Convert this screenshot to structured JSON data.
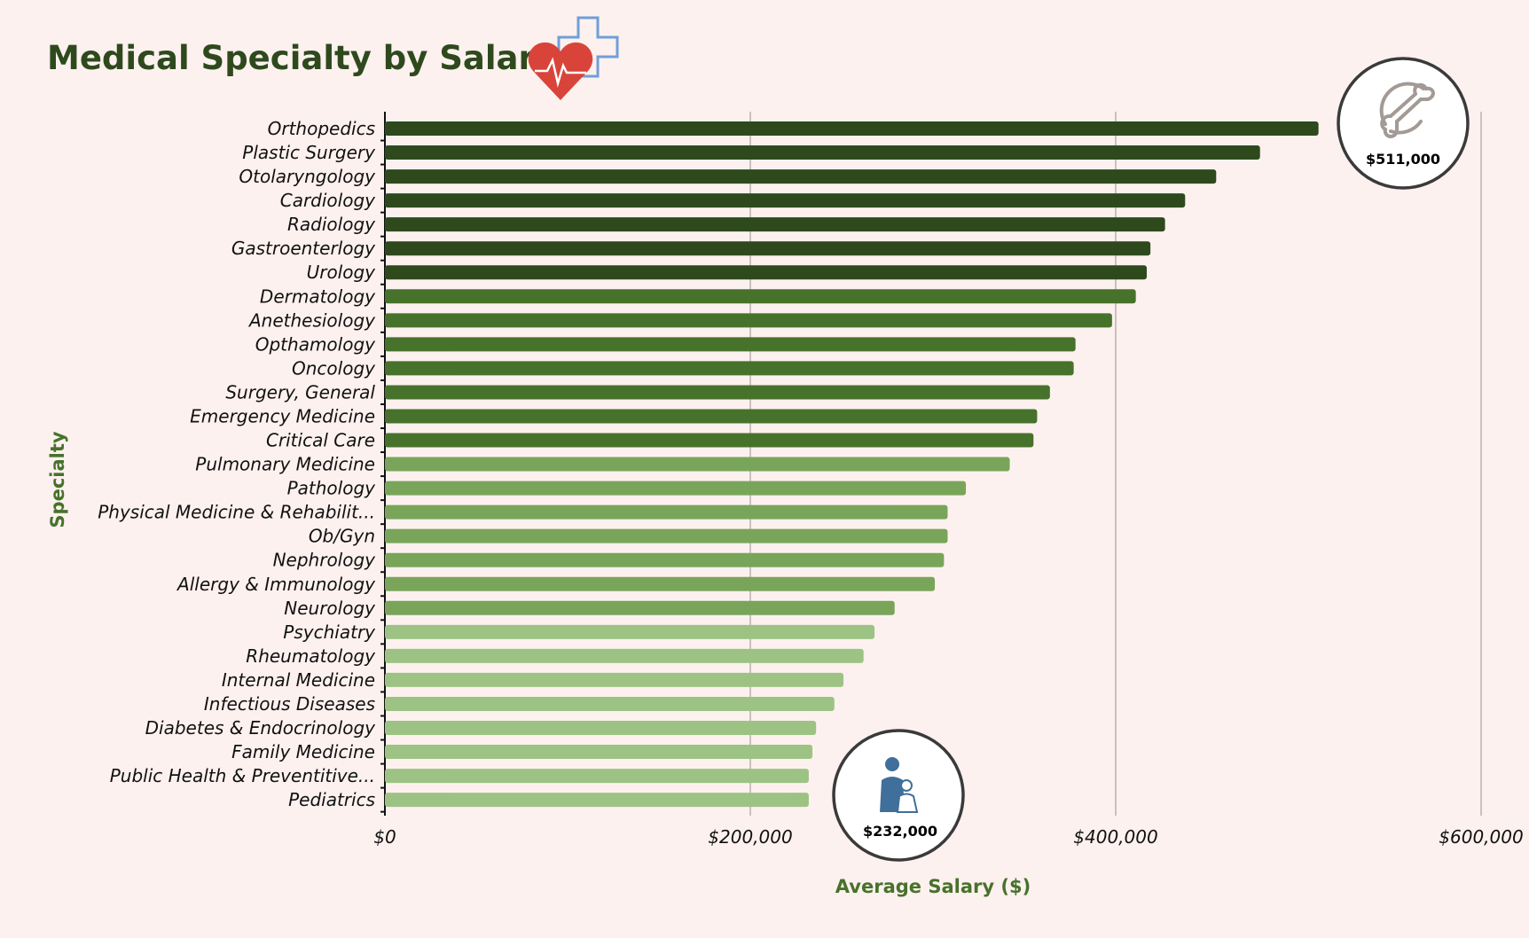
{
  "chart_data": {
    "type": "bar",
    "orientation": "horizontal",
    "title": "Medical Specialty by Salary",
    "xlabel": "Average Salary ($)",
    "ylabel": "Specialty",
    "xlim": [
      0,
      600000
    ],
    "xticks": [
      0,
      200000,
      400000,
      600000
    ],
    "xtick_labels": [
      "$0",
      "$200,000",
      "$400,000",
      "$600,000"
    ],
    "grid": "vertical",
    "categories": [
      "Orthopedics",
      "Plastic Surgery",
      "Otolaryngology",
      "Cardiology",
      "Radiology",
      "Gastroenterlogy",
      "Urology",
      "Dermatology",
      "Anethesiology",
      "Opthamology",
      "Oncology",
      "Surgery, General",
      "Emergency Medicine",
      "Critical Care",
      "Pulmonary Medicine",
      "Pathology",
      "Physical Medicine & Rehabilit...",
      "Ob/Gyn",
      "Nephrology",
      "Allergy & Immunology",
      "Neurology",
      "Psychiatry",
      "Rheumatology",
      "Internal Medicine",
      "Infectious Diseases",
      "Diabetes & Endocrinology",
      "Family Medicine",
      "Public Health & Preventitive...",
      "Pediatrics"
    ],
    "values": [
      511000,
      479000,
      455000,
      438000,
      427000,
      419000,
      417000,
      411000,
      398000,
      378000,
      377000,
      364000,
      357000,
      355000,
      342000,
      318000,
      308000,
      308000,
      306000,
      301000,
      279000,
      268000,
      262000,
      251000,
      246000,
      236000,
      234000,
      232000,
      232000
    ],
    "color_tiers": [
      0,
      0,
      0,
      0,
      0,
      0,
      0,
      1,
      1,
      1,
      1,
      1,
      1,
      1,
      2,
      2,
      2,
      2,
      2,
      2,
      2,
      3,
      3,
      3,
      3,
      3,
      3,
      3,
      3
    ],
    "colors": [
      "#2e4a1d",
      "#47722b",
      "#79a55a",
      "#9dc384"
    ],
    "annotations": [
      {
        "label": "$511,000",
        "icon": "bone-icon",
        "category": "Orthopedics"
      },
      {
        "label": "$232,000",
        "icon": "doctor-child-icon",
        "category": "Pediatrics"
      }
    ],
    "title_icon": "heart-pulse-cross-icon"
  }
}
